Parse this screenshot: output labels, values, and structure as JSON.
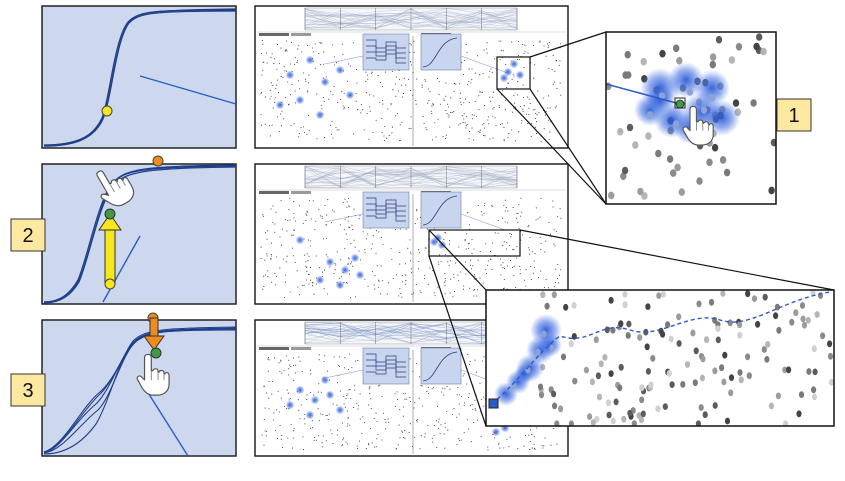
{
  "steps": [
    {
      "label": "1"
    },
    {
      "label": "2"
    },
    {
      "label": "3"
    }
  ],
  "colors": {
    "panel_fill": "#cdd8ef",
    "curve": "#1f3f8a",
    "trail": "#2b5cc4",
    "marker_yellow": "#f7e51e",
    "marker_orange": "#f08c1e",
    "marker_green": "#3f9a43",
    "label_box": "#fde8a0",
    "blob": "#2a5bd7"
  },
  "icons": {
    "cursor": "hand-pointer-icon",
    "drag": "arrow-drag-icon"
  }
}
